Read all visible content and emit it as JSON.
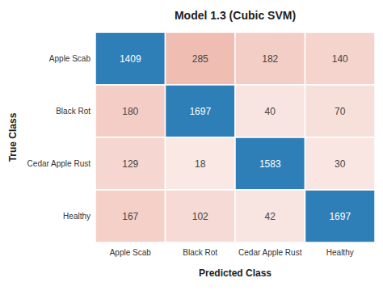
{
  "chart_data": {
    "type": "heatmap",
    "title": "Model 1.3 (Cubic SVM)",
    "x_label": "Predicted Class",
    "y_label": "True Class",
    "categories": [
      "Apple Scab",
      "Black Rot",
      "Cedar Apple Rust",
      "Healthy"
    ],
    "y_categories": [
      "Apple Scab",
      "Black Rot",
      "Cedar Apple Rust",
      "Healthy"
    ],
    "values": [
      [
        1409,
        285,
        182,
        140
      ],
      [
        180,
        1697,
        40,
        70
      ],
      [
        129,
        18,
        1583,
        30
      ],
      [
        167,
        102,
        42,
        1697
      ]
    ],
    "colors": [
      [
        "#2e7eb8",
        "#f0bdb3",
        "#f3cec6",
        "#f5d4ce"
      ],
      [
        "#f4cec6",
        "#2e7eb8",
        "#f8e4e0",
        "#f7e0da"
      ],
      [
        "#f5d6d0",
        "#f9e8e4",
        "#2e7eb8",
        "#f9e6e2"
      ],
      [
        "#f4d0c9",
        "#f6dad5",
        "#f8e4e0",
        "#2e7eb8"
      ]
    ],
    "data_labels": true
  }
}
